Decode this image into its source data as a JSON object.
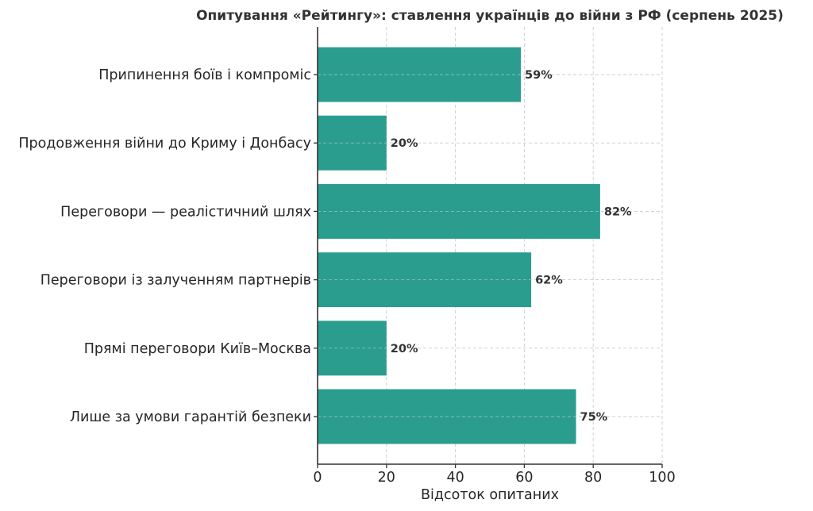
{
  "chart_data": {
    "type": "bar",
    "orientation": "horizontal",
    "title": "Опитування «Рейтингу»: ставлення українців до війни з РФ (серпень 2025)",
    "xlabel": "Відсоток опитаних",
    "ylabel": "",
    "xlim": [
      0,
      100
    ],
    "xticks": [
      0,
      20,
      40,
      60,
      80,
      100
    ],
    "grid": true,
    "legend": null,
    "bar_color": "#2a9d8f",
    "value_suffix": "%",
    "categories": [
      "Припинення боїв і компроміс",
      "Продовження війни до Криму і Донбасу",
      "Переговори — реалістичний шлях",
      "Переговори із залученням партнерів",
      "Прямі переговори Київ–Москва",
      "Лише за умови гарантій безпеки"
    ],
    "values": [
      59,
      20,
      82,
      62,
      20,
      75
    ],
    "value_labels": [
      "59%",
      "20%",
      "82%",
      "62%",
      "20%",
      "75%"
    ]
  }
}
